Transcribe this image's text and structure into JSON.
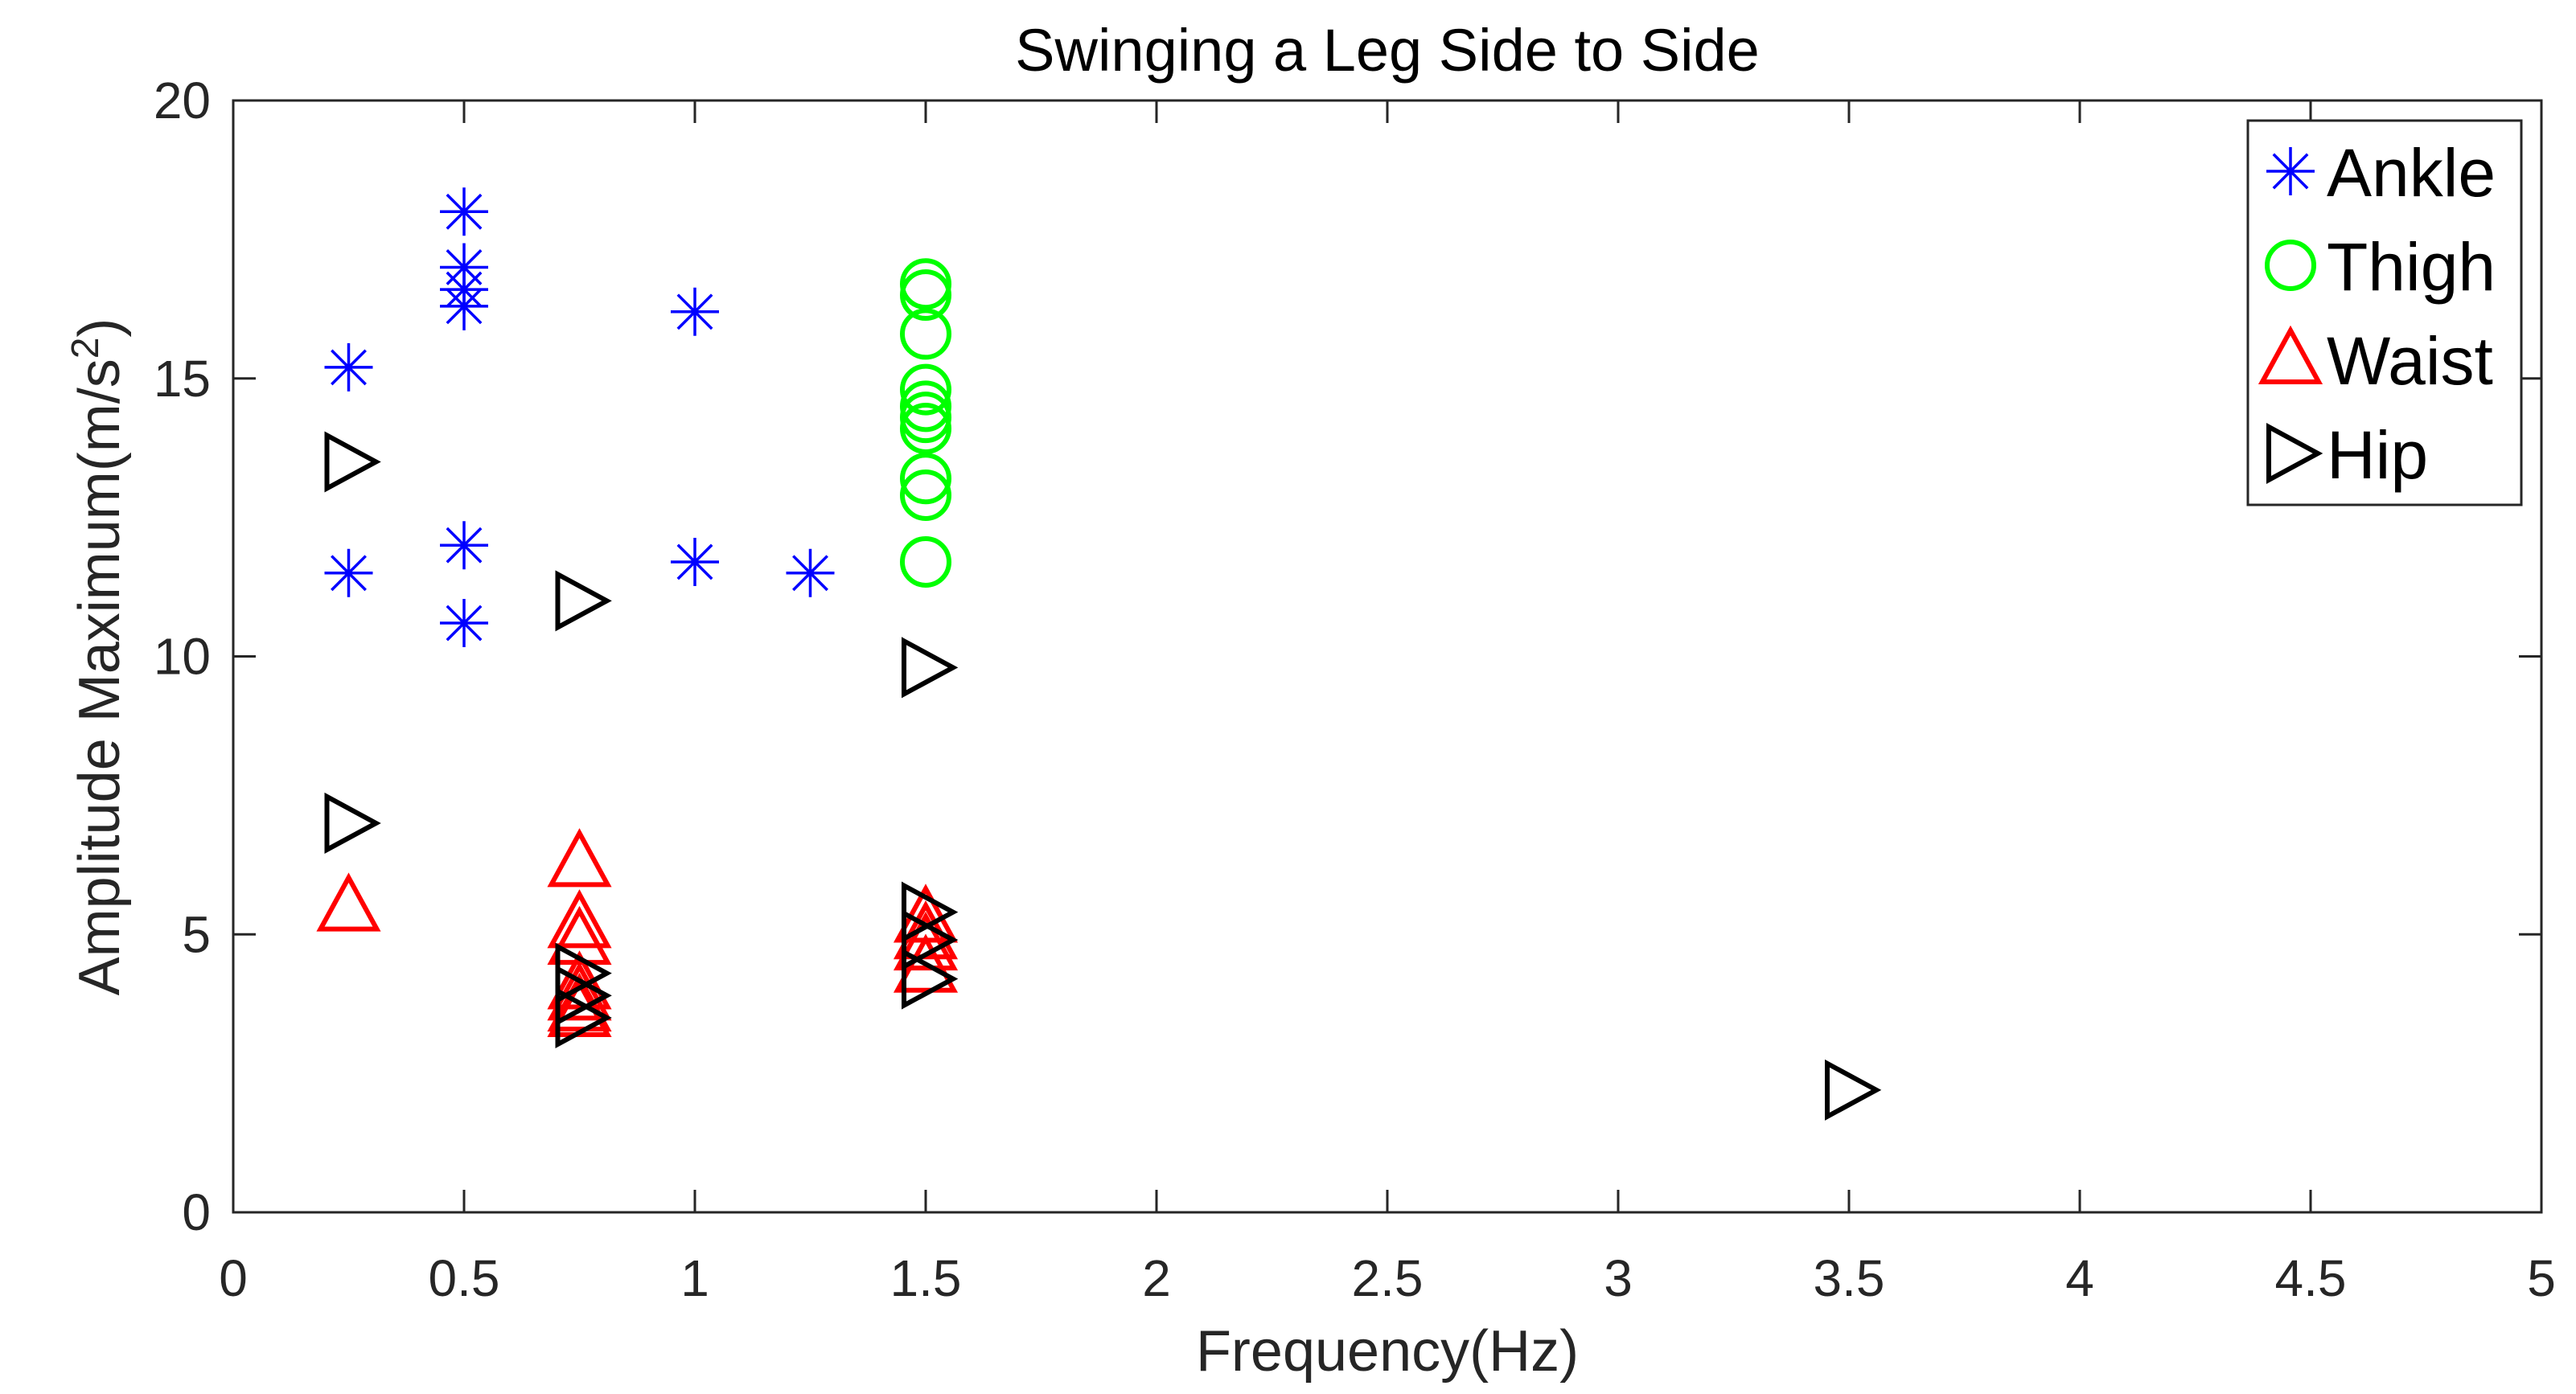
{
  "chart_data": {
    "type": "scatter",
    "title": "Swinging a Leg Side to Side",
    "xlabel": "Frequency(Hz)",
    "ylabel_main": "Amplitude Maximum(m/s",
    "ylabel_sup": "2",
    "ylabel_close": ")",
    "xlim": [
      0,
      5
    ],
    "ylim": [
      0,
      20
    ],
    "xticks": [
      0,
      0.5,
      1,
      1.5,
      2,
      2.5,
      3,
      3.5,
      4,
      4.5,
      5
    ],
    "xtick_labels": [
      "0",
      "0.5",
      "1",
      "1.5",
      "2",
      "2.5",
      "3",
      "3.5",
      "4",
      "4.5",
      "5"
    ],
    "yticks": [
      0,
      5,
      10,
      15,
      20
    ],
    "ytick_labels": [
      "0",
      "5",
      "10",
      "15",
      "20"
    ],
    "grid": false,
    "legend_position": "top-right",
    "series": [
      {
        "name": "Ankle",
        "marker": "asterisk",
        "color": "#0000ff",
        "points": [
          [
            0.25,
            15.2
          ],
          [
            0.25,
            11.5
          ],
          [
            0.5,
            18.0
          ],
          [
            0.5,
            17.0
          ],
          [
            0.5,
            16.6
          ],
          [
            0.5,
            16.3
          ],
          [
            0.5,
            12.0
          ],
          [
            0.5,
            10.6
          ],
          [
            1.0,
            16.2
          ],
          [
            1.0,
            11.7
          ],
          [
            1.25,
            11.5
          ]
        ]
      },
      {
        "name": "Thigh",
        "marker": "circle",
        "color": "#00ff00",
        "points": [
          [
            1.5,
            16.7
          ],
          [
            1.5,
            16.5
          ],
          [
            1.5,
            15.8
          ],
          [
            1.5,
            14.8
          ],
          [
            1.5,
            14.5
          ],
          [
            1.5,
            14.3
          ],
          [
            1.5,
            14.1
          ],
          [
            1.5,
            13.2
          ],
          [
            1.5,
            12.9
          ],
          [
            1.5,
            11.7
          ]
        ]
      },
      {
        "name": "Waist",
        "marker": "triangle-up",
        "color": "#ff0000",
        "points": [
          [
            0.25,
            5.5
          ],
          [
            0.75,
            6.3
          ],
          [
            0.75,
            5.2
          ],
          [
            0.75,
            4.9
          ],
          [
            0.75,
            4.1
          ],
          [
            0.75,
            3.9
          ],
          [
            0.75,
            3.7
          ],
          [
            0.75,
            3.6
          ],
          [
            1.5,
            5.3
          ],
          [
            1.5,
            5.0
          ],
          [
            1.5,
            4.8
          ],
          [
            1.5,
            4.4
          ]
        ]
      },
      {
        "name": "Hip",
        "marker": "triangle-right",
        "color": "#000000",
        "points": [
          [
            0.25,
            13.5
          ],
          [
            0.25,
            7.0
          ],
          [
            0.75,
            11.0
          ],
          [
            0.75,
            4.3
          ],
          [
            0.75,
            3.9
          ],
          [
            0.75,
            3.5
          ],
          [
            1.5,
            9.8
          ],
          [
            1.5,
            5.4
          ],
          [
            1.5,
            4.9
          ],
          [
            1.5,
            4.2
          ],
          [
            3.5,
            2.2
          ]
        ]
      }
    ]
  }
}
